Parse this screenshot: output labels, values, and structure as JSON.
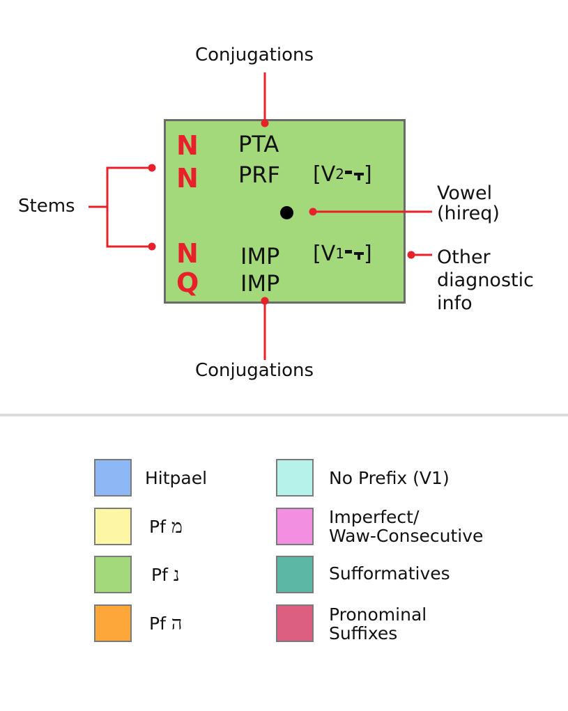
{
  "diagram": {
    "top_label": "Conjugations",
    "bottom_label": "Conjugations",
    "left_label": "Stems",
    "vowel_label_line1": "Vowel",
    "vowel_label_line2": "(hireq)",
    "other_label_line1": "Other",
    "other_label_line2": "diagnostic",
    "other_label_line3": "info",
    "rows": [
      {
        "stem": "N",
        "conjugation": "PTA"
      },
      {
        "stem": "N",
        "conjugation": "PRF",
        "diagnostic_prefix": "[V",
        "diagnostic_index": "2",
        "diagnostic_suffix": "]"
      },
      {
        "stem": "N",
        "conjugation": "IMP",
        "diagnostic_prefix": "[V",
        "diagnostic_index": "1",
        "diagnostic_suffix": "]"
      },
      {
        "stem": "Q",
        "conjugation": "IMP"
      }
    ],
    "colors": {
      "card_fill": "#a3d87b",
      "card_border": "#6a6a6a",
      "stem_text": "#e8202a",
      "connector": "#e8202a"
    }
  },
  "legend": {
    "left": [
      {
        "label": "Hitpael",
        "color": "#8db8f5"
      },
      {
        "label": "Pf",
        "hebrew": "מ",
        "color": "#fdf6a4"
      },
      {
        "label": "Pf",
        "hebrew": "נ",
        "color": "#a3d87b"
      },
      {
        "label": "Pf",
        "hebrew": "ה",
        "color": "#fda73a"
      }
    ],
    "right": [
      {
        "label": "No Prefix (V1)",
        "color": "#b6f2ea"
      },
      {
        "label_line1": "Imperfect/",
        "label_line2": "Waw-Consecutive",
        "color": "#f38fe0"
      },
      {
        "label": "Sufformatives",
        "color": "#5cb8a5"
      },
      {
        "label_line1": "Pronominal",
        "label_line2": "Suffixes",
        "color": "#dc5f82"
      }
    ]
  }
}
